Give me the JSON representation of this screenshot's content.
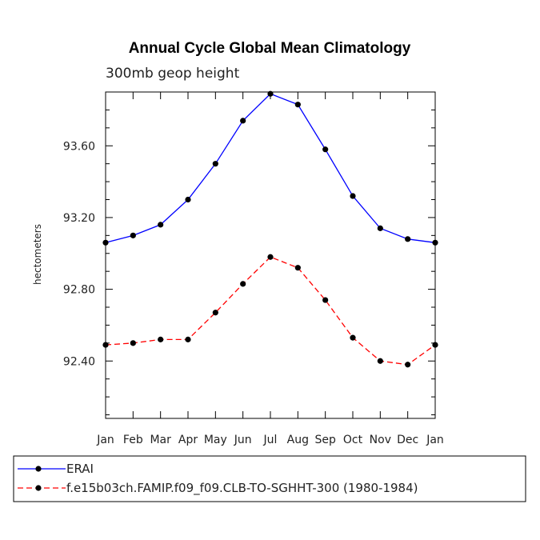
{
  "chart_data": {
    "type": "line",
    "title": "Annual Cycle Global Mean Climatology",
    "subtitle": "300mb geop height",
    "xlabel": "",
    "ylabel": "hectometers",
    "categories": [
      "Jan",
      "Feb",
      "Mar",
      "Apr",
      "May",
      "Jun",
      "Jul",
      "Aug",
      "Sep",
      "Oct",
      "Nov",
      "Dec",
      "Jan"
    ],
    "ylim": [
      92.08,
      93.9
    ],
    "yticks": [
      92.4,
      92.8,
      93.2,
      93.6
    ],
    "ytick_labels": [
      "92.40",
      "92.80",
      "93.20",
      "93.60"
    ],
    "series": [
      {
        "name": "ERAI",
        "color": "#0000ff",
        "dash": "solid",
        "values": [
          93.06,
          93.1,
          93.16,
          93.3,
          93.5,
          93.74,
          93.89,
          93.83,
          93.58,
          93.32,
          93.14,
          93.08,
          93.06
        ]
      },
      {
        "name": "f.e15b03ch.FAMIP.f09_f09.CLB-TO-SGHHT-300 (1980-1984)",
        "color": "#ff0000",
        "dash": "dashed",
        "values": [
          92.49,
          92.5,
          92.52,
          92.52,
          92.67,
          92.83,
          92.98,
          92.92,
          92.74,
          92.53,
          92.4,
          92.38,
          92.49
        ]
      }
    ]
  }
}
